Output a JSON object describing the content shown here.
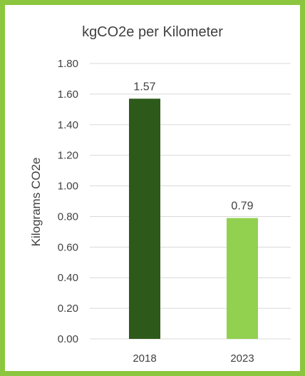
{
  "chart_data": {
    "type": "bar",
    "title": "kgCO2e per Kilometer",
    "ylabel": "Kilograms CO2e",
    "xlabel": "",
    "categories": [
      "2018",
      "2023"
    ],
    "values": [
      1.57,
      0.79
    ],
    "value_labels": [
      "1.57",
      "0.79"
    ],
    "ylim": [
      0,
      1.8
    ],
    "yticks": [
      "0.00",
      "0.20",
      "0.40",
      "0.60",
      "0.80",
      "1.00",
      "1.20",
      "1.40",
      "1.60",
      "1.80"
    ],
    "bar_colors": [
      "#2d5a1b",
      "#92d050"
    ],
    "border_color": "#8cc63f",
    "grid": true,
    "legend": "none"
  }
}
